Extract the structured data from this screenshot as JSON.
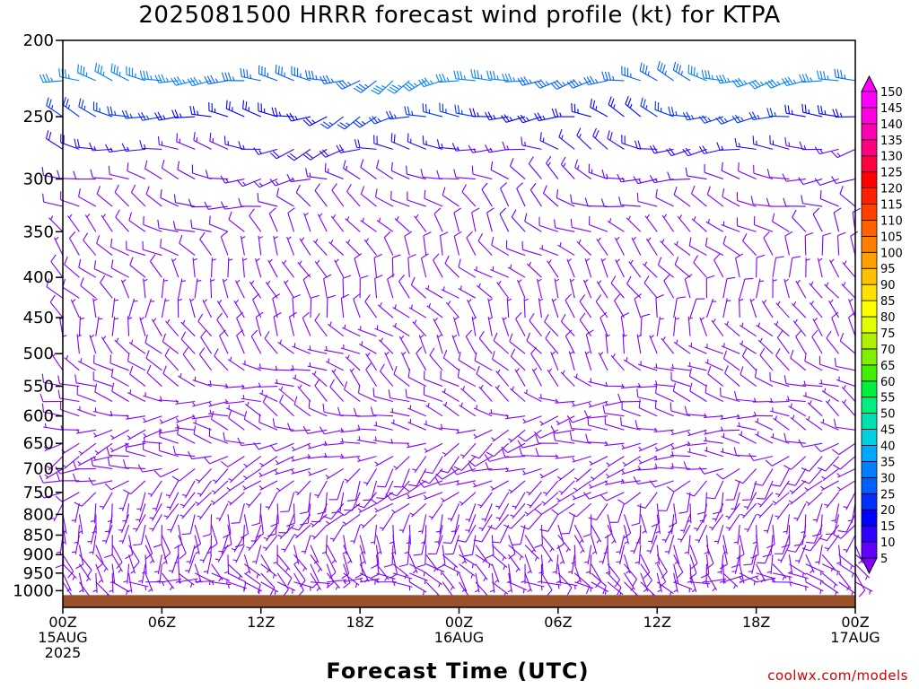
{
  "page": {
    "title": "2025081500 HRRR forecast wind profile (kt) for KTPA",
    "xlabel": "Forecast Time (UTC)",
    "credit": "coolwx.com/models"
  },
  "chart_data": {
    "type": "wind-barb profile",
    "title": "2025081500 HRRR forecast wind profile (kt) for KTPA",
    "xlabel": "Forecast Time (UTC)",
    "ylabel": "",
    "y_scale": "log-pressure (inverted)",
    "ylim": [
      200,
      1050
    ],
    "y_ticks": [
      200,
      250,
      300,
      350,
      400,
      450,
      500,
      550,
      600,
      650,
      700,
      750,
      800,
      850,
      900,
      950,
      1000
    ],
    "x_range_hours": [
      0,
      48
    ],
    "x_ticks": [
      {
        "hour": 0,
        "lines": [
          "00Z",
          "15AUG",
          "2025"
        ]
      },
      {
        "hour": 6,
        "lines": [
          "06Z"
        ]
      },
      {
        "hour": 12,
        "lines": [
          "12Z"
        ]
      },
      {
        "hour": 18,
        "lines": [
          "18Z"
        ]
      },
      {
        "hour": 24,
        "lines": [
          "00Z",
          "16AUG"
        ]
      },
      {
        "hour": 30,
        "lines": [
          "06Z"
        ]
      },
      {
        "hour": 36,
        "lines": [
          "12Z"
        ]
      },
      {
        "hour": 42,
        "lines": [
          "18Z"
        ]
      },
      {
        "hour": 48,
        "lines": [
          "00Z",
          "17AUG"
        ]
      }
    ],
    "surface_band_top_hpa": 1013,
    "surface_color": "#9a5028",
    "barb_levels": [
      225,
      250,
      275,
      300,
      325,
      350,
      375,
      400,
      425,
      450,
      475,
      500,
      525,
      550,
      575,
      600,
      625,
      650,
      675,
      700,
      725,
      750,
      775,
      800,
      825,
      850,
      875,
      900,
      925,
      950,
      975
    ],
    "barb_hour_step": 1,
    "wind_samples_kt": [
      {
        "p": 225,
        "dir": 265,
        "spd": 35
      },
      {
        "p": 250,
        "dir": 270,
        "spd": 25
      },
      {
        "p": 275,
        "dir": 275,
        "spd": 17
      },
      {
        "p": 300,
        "dir": 285,
        "spd": 12
      },
      {
        "p": 325,
        "dir": 300,
        "spd": 10
      },
      {
        "p": 350,
        "dir": 315,
        "spd": 8
      },
      {
        "p": 400,
        "dir": 330,
        "spd": 7
      },
      {
        "p": 450,
        "dir": 340,
        "spd": 7
      },
      {
        "p": 500,
        "dir": 320,
        "spd": 7
      },
      {
        "p": 550,
        "dir": 300,
        "spd": 7
      },
      {
        "p": 600,
        "dir": 280,
        "spd": 7
      },
      {
        "p": 650,
        "dir": 260,
        "spd": 7
      },
      {
        "p": 700,
        "dir": 240,
        "spd": 7
      },
      {
        "p": 750,
        "dir": 220,
        "spd": 7
      },
      {
        "p": 800,
        "dir": 200,
        "spd": 7
      },
      {
        "p": 850,
        "dir": 180,
        "spd": 6
      },
      {
        "p": 900,
        "dir": 160,
        "spd": 6
      },
      {
        "p": 950,
        "dir": 140,
        "spd": 6
      },
      {
        "p": 975,
        "dir": 110,
        "spd": 5
      }
    ],
    "colorbar": {
      "levels": [
        5,
        10,
        15,
        20,
        25,
        30,
        35,
        40,
        45,
        50,
        55,
        60,
        65,
        70,
        75,
        80,
        85,
        90,
        95,
        100,
        105,
        110,
        115,
        120,
        125,
        130,
        135,
        140,
        145,
        150
      ],
      "colors": [
        "#8000ff",
        "#6000ff",
        "#3000ff",
        "#0000ff",
        "#0030ff",
        "#0060ff",
        "#0080ff",
        "#00a8ff",
        "#00d0e0",
        "#00e0b0",
        "#00f080",
        "#00f040",
        "#40f000",
        "#80f000",
        "#b0f000",
        "#e0ff00",
        "#ffff00",
        "#ffe000",
        "#ffc000",
        "#ffa000",
        "#ff8000",
        "#ff6000",
        "#ff4000",
        "#ff2000",
        "#ff0000",
        "#ff0040",
        "#ff0080",
        "#ff00b0",
        "#ff00e0",
        "#ff00ff"
      ]
    }
  }
}
